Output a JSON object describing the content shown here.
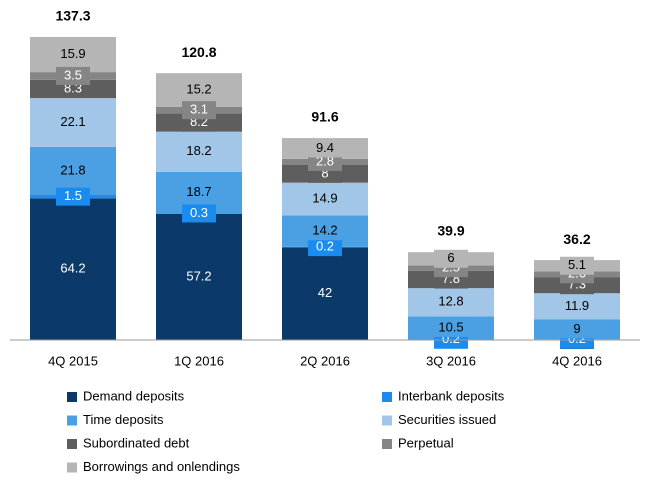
{
  "chart_data": {
    "type": "stacked_bar",
    "categories": [
      "4Q 2015",
      "1Q 2016",
      "2Q 2016",
      "3Q 2016",
      "4Q 2016"
    ],
    "series": [
      {
        "name": "Demand deposits",
        "color": "#0b3a6a",
        "values": [
          64.2,
          57.2,
          42.0,
          null,
          0.1
        ]
      },
      {
        "name": "Interbank deposits",
        "color": "#1a8cf0",
        "values": [
          1.5,
          0.3,
          0.2,
          0.2,
          0.2
        ]
      },
      {
        "name": "Time deposits",
        "color": "#4b9fe3",
        "values": [
          21.8,
          18.7,
          14.2,
          10.5,
          9.0
        ]
      },
      {
        "name": "Securities issued",
        "color": "#a2c6e8",
        "values": [
          22.1,
          18.2,
          14.9,
          12.8,
          11.9
        ]
      },
      {
        "name": "Subordinated debt",
        "color": "#5e5e5e",
        "values": [
          8.3,
          8.2,
          8.0,
          7.8,
          7.3
        ]
      },
      {
        "name": "Perpetual",
        "color": "#858585",
        "values": [
          3.5,
          3.1,
          2.8,
          2.5,
          2.6
        ]
      },
      {
        "name": "Borrowings and onlendings",
        "color": "#b5b5b5",
        "values": [
          15.9,
          15.2,
          9.4,
          6.0,
          5.1
        ]
      }
    ],
    "totals": [
      137.3,
      120.8,
      91.6,
      39.9,
      36.2
    ],
    "legend": "bottom"
  }
}
